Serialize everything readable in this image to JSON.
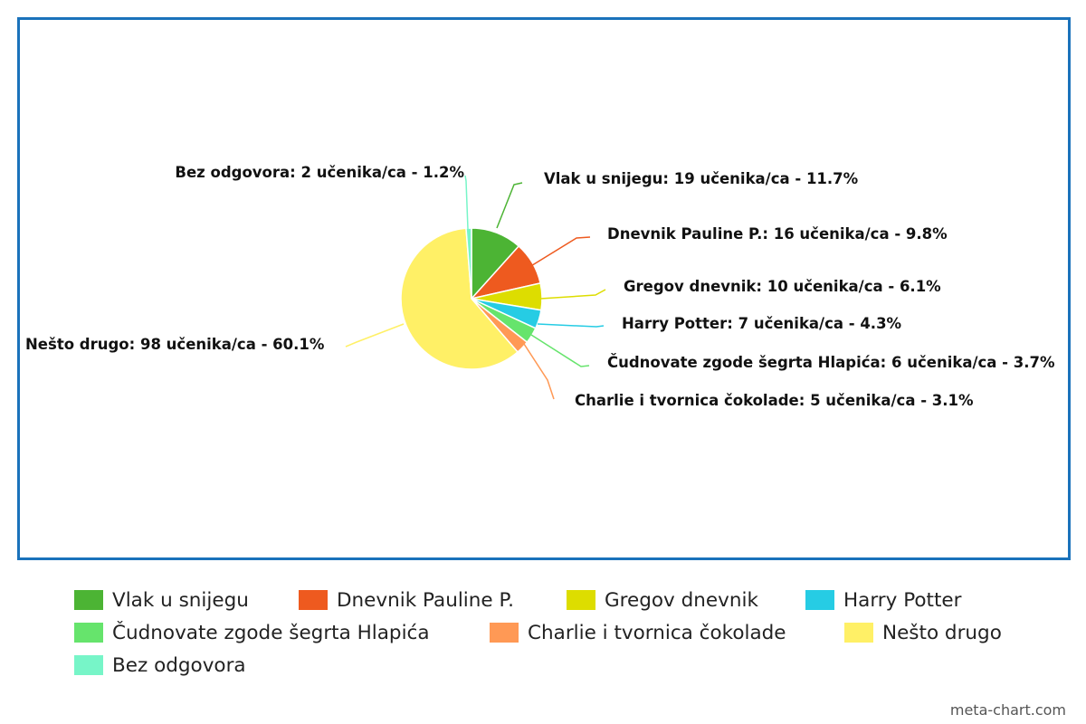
{
  "chart_data": {
    "type": "pie",
    "title": "",
    "slices": [
      {
        "name": "Vlak u snijegu",
        "value": 19,
        "percent": 11.7,
        "color": "#4cb434",
        "label": "Vlak u snijegu: 19 učenika/ca - 11.7%"
      },
      {
        "name": "Dnevnik Pauline P.",
        "value": 16,
        "percent": 9.8,
        "color": "#ee5a1f",
        "label": "Dnevnik Pauline P.: 16 učenika/ca - 9.8%"
      },
      {
        "name": "Gregov dnevnik",
        "value": 10,
        "percent": 6.1,
        "color": "#dddd00",
        "label": "Gregov dnevnik: 10 učenika/ca - 6.1%"
      },
      {
        "name": "Harry Potter",
        "value": 7,
        "percent": 4.3,
        "color": "#26cce4",
        "label": "Harry Potter: 7 učenika/ca - 4.3%"
      },
      {
        "name": "Čudnovate zgode šegrta Hlapića",
        "value": 6,
        "percent": 3.7,
        "color": "#66e46c",
        "label": "Čudnovate zgode šegrta Hlapića: 6 učenika/ca - 3.7%"
      },
      {
        "name": "Charlie i tvornica čokolade",
        "value": 5,
        "percent": 3.1,
        "color": "#ff9955",
        "label": "Charlie i tvornica čokolade: 5 učenika/ca - 3.1%"
      },
      {
        "name": "Nešto drugo",
        "value": 98,
        "percent": 60.1,
        "color": "#fff066",
        "label": "Nešto drugo: 98 učenika/ca - 60.1%"
      },
      {
        "name": "Bez odgovora",
        "value": 2,
        "percent": 1.2,
        "color": "#77f5c8",
        "label": "Bez odgovora: 2 učenika/ca - 1.2%"
      }
    ],
    "legend_position": "bottom"
  },
  "watermark": "meta-chart.com"
}
